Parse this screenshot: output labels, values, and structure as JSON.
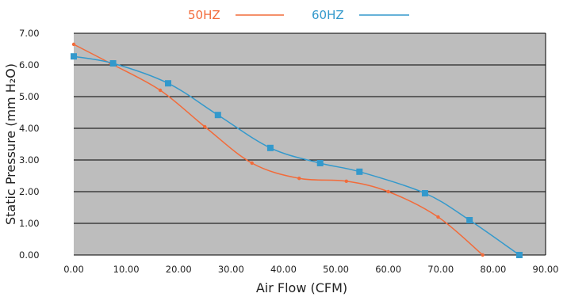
{
  "chart_data": {
    "type": "line",
    "title": "",
    "xlabel": "Air Flow (CFM)",
    "ylabel": "Static Pressure (mm H₂O)",
    "xlim": [
      0,
      90
    ],
    "ylim": [
      0,
      7
    ],
    "x_ticks": [
      "0.00",
      "10.00",
      "20.00",
      "30.00",
      "40.00",
      "50.00",
      "60.00",
      "70.00",
      "80.00",
      "90.00"
    ],
    "y_ticks": [
      "0.00",
      "1.00",
      "2.00",
      "3.00",
      "4.00",
      "5.00",
      "6.00",
      "7.00"
    ],
    "grid": "horizontal",
    "legend_position": "top-center",
    "plot_background": "#bdbdbd",
    "series": [
      {
        "name": "50HZ",
        "color": "#f26b3a",
        "marker": "dot",
        "points": [
          [
            0,
            6.65
          ],
          [
            7,
            6.05
          ],
          [
            16.5,
            5.2
          ],
          [
            25,
            4.05
          ],
          [
            34,
            2.9
          ],
          [
            43,
            2.42
          ],
          [
            52,
            2.33
          ],
          [
            60,
            2.0
          ],
          [
            69.5,
            1.2
          ],
          [
            78,
            0.0
          ]
        ]
      },
      {
        "name": "60HZ",
        "color": "#3399cc",
        "marker": "square",
        "points": [
          [
            0,
            6.27
          ],
          [
            7.5,
            6.05
          ],
          [
            18,
            5.42
          ],
          [
            27.5,
            4.42
          ],
          [
            37.5,
            3.38
          ],
          [
            47,
            2.9
          ],
          [
            54.5,
            2.63
          ],
          [
            67,
            1.95
          ],
          [
            75.5,
            1.1
          ],
          [
            85,
            0.0
          ]
        ]
      }
    ]
  }
}
